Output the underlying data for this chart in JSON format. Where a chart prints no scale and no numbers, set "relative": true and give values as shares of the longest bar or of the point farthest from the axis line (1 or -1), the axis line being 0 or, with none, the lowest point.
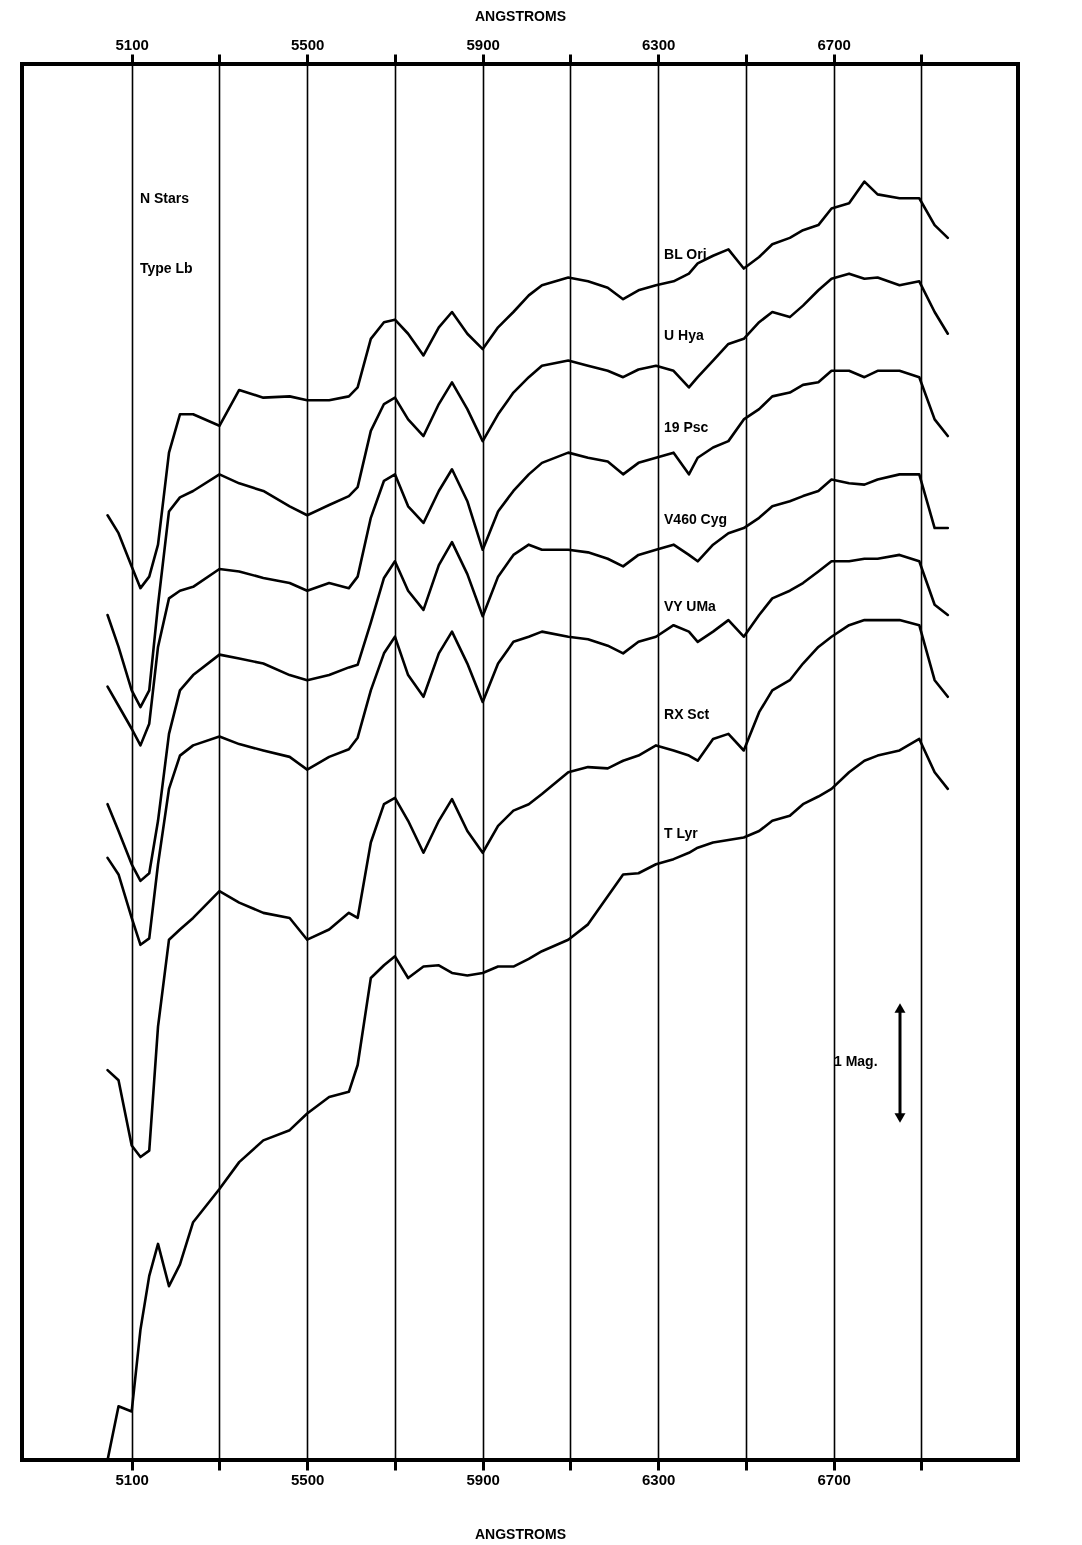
{
  "chart_data": {
    "type": "line",
    "relative": true,
    "xlabel": "ANGSTROMS",
    "x2label": "ANGSTROMS",
    "annotations": [
      "N Stars",
      "Type Lb",
      "1 Mag."
    ],
    "x": [
      5045,
      5070,
      5100,
      5120,
      5140,
      5160,
      5185,
      5210,
      5240,
      5300,
      5345,
      5400,
      5460,
      5500,
      5550,
      5595,
      5615,
      5645,
      5675,
      5700,
      5730,
      5765,
      5800,
      5830,
      5865,
      5900,
      5935,
      5970,
      6005,
      6035,
      6095,
      6140,
      6185,
      6220,
      6255,
      6295,
      6335,
      6370,
      6390,
      6425,
      6460,
      6495,
      6530,
      6560,
      6600,
      6630,
      6665,
      6695,
      6735,
      6770,
      6800,
      6850,
      6895,
      6930,
      6960
    ],
    "xlim": [
      4850,
      7120
    ],
    "xticks": [
      5100,
      {
        "value": 5300,
        "label": null
      },
      5500,
      {
        "value": 5700,
        "label": null
      },
      5900,
      {
        "value": 6100,
        "label": null
      },
      6300,
      {
        "value": 6500,
        "label": null
      },
      6700,
      {
        "value": 6900,
        "label": null
      }
    ],
    "x2lim": [
      4850,
      7120
    ],
    "x2ticks": [
      5100,
      {
        "value": 5300,
        "label": null
      },
      5500,
      {
        "value": 5700,
        "label": null
      },
      5900,
      {
        "value": 6100,
        "label": null
      },
      6300,
      {
        "value": 6500,
        "label": null
      },
      6700,
      {
        "value": 6900,
        "label": null
      }
    ],
    "grid": "x",
    "marker": "none",
    "line_style": "solid",
    "series": [
      {
        "name": "BL Ori",
        "color": "#000000",
        "values": [
          0.739,
          0.725,
          0.699,
          0.682,
          0.691,
          0.716,
          0.788,
          0.818,
          0.818,
          0.809,
          0.837,
          0.831,
          0.832,
          0.829,
          0.829,
          0.832,
          0.839,
          0.877,
          0.89,
          0.892,
          0.881,
          0.864,
          0.886,
          0.898,
          0.881,
          0.869,
          0.886,
          0.898,
          0.911,
          0.919,
          0.925,
          0.922,
          0.917,
          0.908,
          0.915,
          0.919,
          0.922,
          0.928,
          0.936,
          0.942,
          0.947,
          0.932,
          0.941,
          0.951,
          0.956,
          0.962,
          0.966,
          0.979,
          0.983,
          1.0,
          0.99,
          0.987,
          0.987,
          0.966,
          0.956
        ]
      },
      {
        "name": "U Hya",
        "color": "#000000",
        "values": [
          0.661,
          0.636,
          0.602,
          0.589,
          0.602,
          0.669,
          0.742,
          0.753,
          0.758,
          0.771,
          0.764,
          0.758,
          0.746,
          0.739,
          0.747,
          0.754,
          0.761,
          0.805,
          0.826,
          0.831,
          0.814,
          0.801,
          0.826,
          0.843,
          0.822,
          0.797,
          0.818,
          0.835,
          0.847,
          0.856,
          0.86,
          0.856,
          0.852,
          0.847,
          0.853,
          0.856,
          0.852,
          0.839,
          0.847,
          0.86,
          0.873,
          0.877,
          0.89,
          0.898,
          0.894,
          0.903,
          0.915,
          0.924,
          0.928,
          0.924,
          0.925,
          0.919,
          0.922,
          0.898,
          0.881
        ]
      },
      {
        "name": "19 Psc",
        "color": "#000000",
        "values": [
          0.605,
          0.59,
          0.572,
          0.559,
          0.576,
          0.636,
          0.674,
          0.68,
          0.683,
          0.697,
          0.695,
          0.69,
          0.686,
          0.68,
          0.686,
          0.682,
          0.691,
          0.737,
          0.766,
          0.771,
          0.746,
          0.733,
          0.758,
          0.775,
          0.75,
          0.712,
          0.742,
          0.758,
          0.771,
          0.78,
          0.788,
          0.784,
          0.781,
          0.771,
          0.78,
          0.784,
          0.788,
          0.771,
          0.784,
          0.792,
          0.797,
          0.814,
          0.822,
          0.832,
          0.835,
          0.841,
          0.843,
          0.852,
          0.852,
          0.847,
          0.852,
          0.852,
          0.847,
          0.814,
          0.801
        ]
      },
      {
        "name": "V460 Cyg",
        "color": "#000000",
        "values": [
          0.513,
          0.492,
          0.466,
          0.453,
          0.459,
          0.5,
          0.568,
          0.602,
          0.614,
          0.63,
          0.627,
          0.623,
          0.614,
          0.61,
          0.614,
          0.62,
          0.622,
          0.655,
          0.69,
          0.703,
          0.68,
          0.665,
          0.7,
          0.718,
          0.693,
          0.66,
          0.691,
          0.708,
          0.716,
          0.712,
          0.712,
          0.71,
          0.705,
          0.699,
          0.708,
          0.712,
          0.716,
          0.708,
          0.703,
          0.716,
          0.725,
          0.729,
          0.737,
          0.746,
          0.75,
          0.754,
          0.758,
          0.767,
          0.764,
          0.763,
          0.767,
          0.771,
          0.771,
          0.729,
          0.729
        ]
      },
      {
        "name": "VY UMa",
        "color": "#000000",
        "values": [
          0.471,
          0.458,
          0.424,
          0.403,
          0.408,
          0.466,
          0.525,
          0.551,
          0.559,
          0.566,
          0.56,
          0.555,
          0.55,
          0.54,
          0.55,
          0.556,
          0.565,
          0.602,
          0.631,
          0.644,
          0.614,
          0.597,
          0.631,
          0.648,
          0.623,
          0.593,
          0.623,
          0.64,
          0.644,
          0.648,
          0.644,
          0.642,
          0.637,
          0.631,
          0.64,
          0.644,
          0.653,
          0.648,
          0.64,
          0.648,
          0.657,
          0.644,
          0.661,
          0.674,
          0.68,
          0.686,
          0.695,
          0.703,
          0.703,
          0.705,
          0.705,
          0.708,
          0.703,
          0.669,
          0.661
        ]
      },
      {
        "name": "RX Sct",
        "color": "#000000",
        "values": [
          0.305,
          0.297,
          0.246,
          0.237,
          0.242,
          0.339,
          0.407,
          0.415,
          0.424,
          0.445,
          0.436,
          0.428,
          0.424,
          0.407,
          0.415,
          0.428,
          0.424,
          0.483,
          0.513,
          0.518,
          0.5,
          0.475,
          0.5,
          0.517,
          0.492,
          0.475,
          0.496,
          0.508,
          0.513,
          0.521,
          0.538,
          0.542,
          0.541,
          0.547,
          0.551,
          0.559,
          0.555,
          0.551,
          0.547,
          0.564,
          0.568,
          0.555,
          0.585,
          0.602,
          0.61,
          0.623,
          0.636,
          0.644,
          0.653,
          0.657,
          0.657,
          0.657,
          0.653,
          0.61,
          0.597
        ]
      },
      {
        "name": "T Lyr",
        "color": "#000000",
        "values": [
          0.0,
          0.042,
          0.038,
          0.102,
          0.144,
          0.169,
          0.136,
          0.153,
          0.186,
          0.212,
          0.233,
          0.25,
          0.258,
          0.271,
          0.284,
          0.288,
          0.309,
          0.377,
          0.387,
          0.394,
          0.377,
          0.386,
          0.387,
          0.381,
          0.379,
          0.381,
          0.386,
          0.386,
          0.392,
          0.398,
          0.407,
          0.419,
          0.441,
          0.458,
          0.459,
          0.466,
          0.47,
          0.475,
          0.479,
          0.483,
          0.485,
          0.487,
          0.492,
          0.5,
          0.504,
          0.513,
          0.519,
          0.525,
          0.538,
          0.547,
          0.551,
          0.555,
          0.564,
          0.538,
          0.525
        ]
      }
    ]
  }
}
